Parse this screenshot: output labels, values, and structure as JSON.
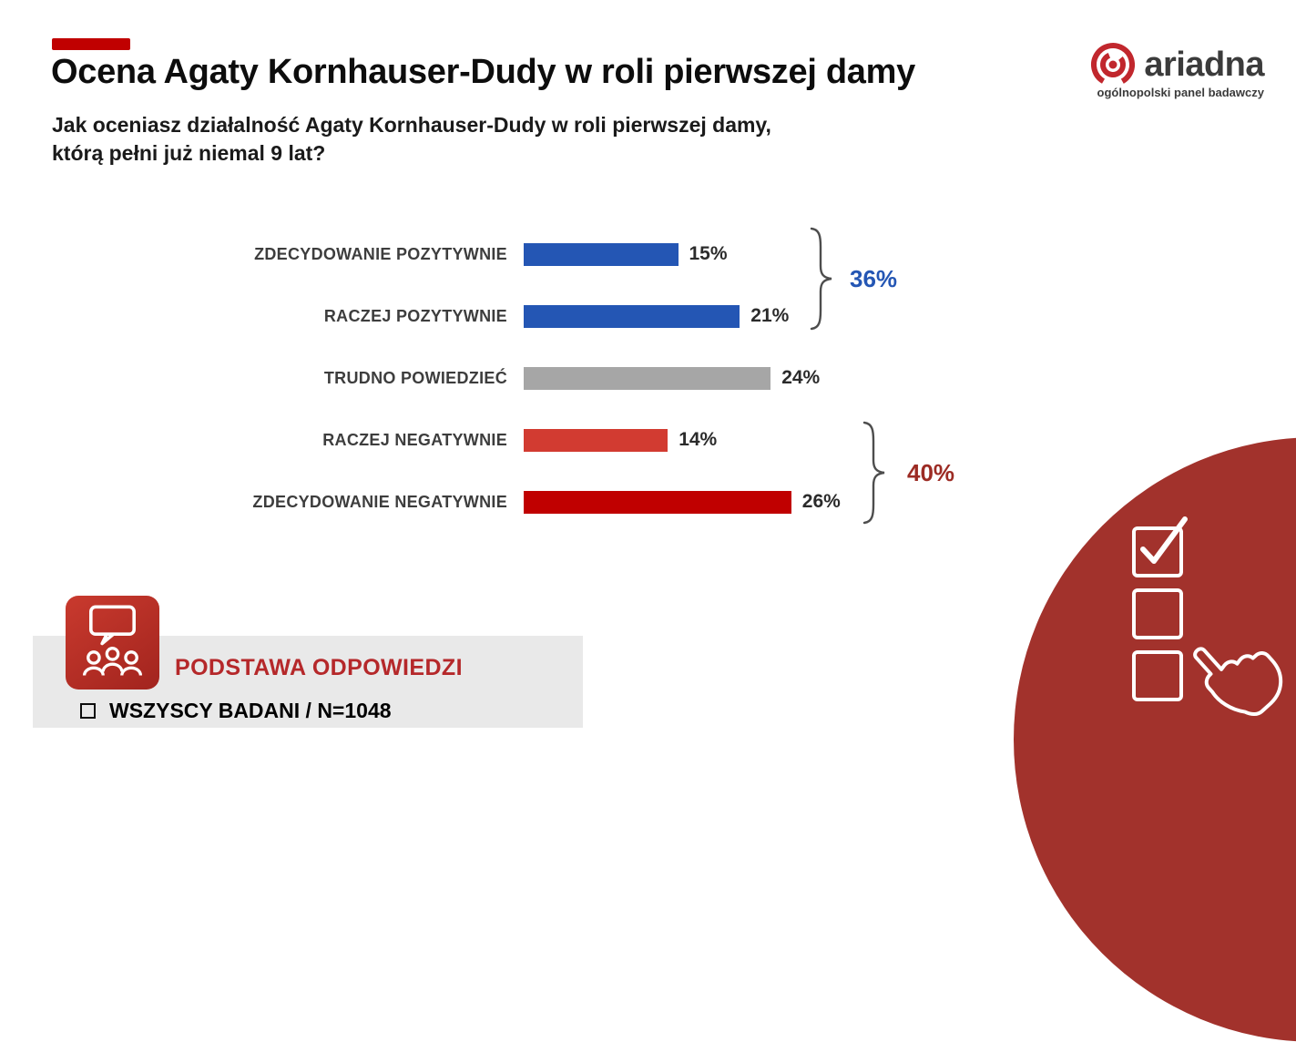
{
  "header": {
    "title": "Ocena Agaty Kornhauser-Dudy w roli pierwszej damy",
    "question_line1": "Jak oceniasz działalność Agaty Kornhauser-Dudy w roli pierwszej damy,",
    "question_line2": "którą pełni już niemal 9 lat?"
  },
  "logo": {
    "name": "ariadna",
    "tagline": "ogólnopolski panel badawczy",
    "icon": "spiral-target-icon",
    "brand_color": "#c1272d",
    "text_color": "#3b3b3b"
  },
  "chart_data": {
    "type": "bar",
    "orientation": "horizontal",
    "categories": [
      "ZDECYDOWANIE POZYTYWNIE",
      "RACZEJ POZYTYWNIE",
      "TRUDNO POWIEDZIEĆ",
      "RACZEJ NEGATYWNIE",
      "ZDECYDOWANIE NEGATYWNIE"
    ],
    "values": [
      15,
      21,
      24,
      14,
      26
    ],
    "value_labels": [
      "15%",
      "21%",
      "24%",
      "14%",
      "26%"
    ],
    "bar_colors": [
      "#2456b4",
      "#2456b4",
      "#a6a6a6",
      "#d23b31",
      "#c00000"
    ],
    "unit": "%",
    "xlim": [
      0,
      30
    ],
    "grid": false,
    "legend": false,
    "groups": [
      {
        "label": "36%",
        "color": "#2456b4",
        "covers": [
          "ZDECYDOWANIE POZYTYWNIE",
          "RACZEJ POZYTYWNIE"
        ]
      },
      {
        "label": "40%",
        "color": "#9c2b24",
        "covers": [
          "RACZEJ NEGATYWNIE",
          "ZDECYDOWANIE NEGATYWNIE"
        ]
      }
    ]
  },
  "footer": {
    "heading": "PODSTAWA ODPOWIEDZI",
    "heading_color": "#b5282a",
    "item": "WSZYSCY BADANI / N=1048",
    "icon": "audience-speech-bubble-icon",
    "checkbox_icon": "checkbox-outline-icon"
  },
  "decor": {
    "accent_bar_color": "#c00000",
    "circle_color": "#a2322c",
    "circle_art": "checklist-with-pointing-hand-icon"
  }
}
